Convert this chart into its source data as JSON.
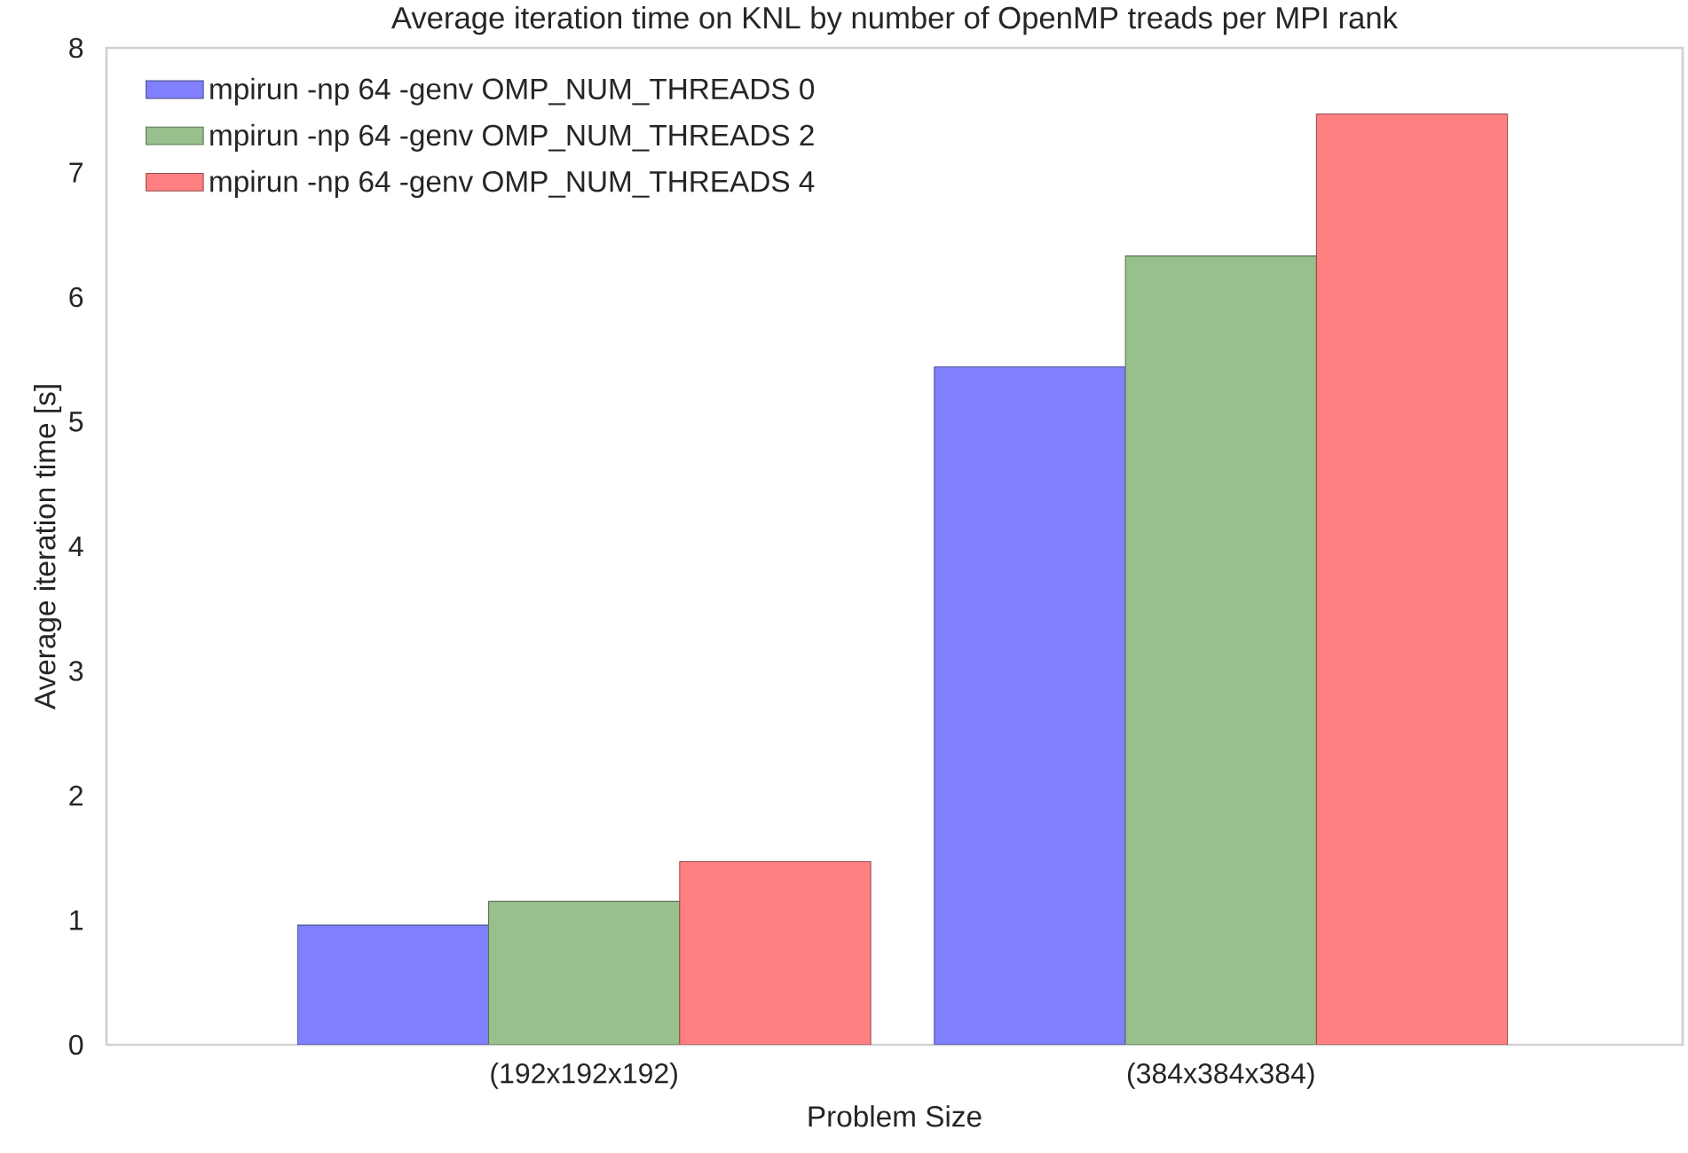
{
  "chart_data": {
    "type": "bar",
    "title": "Average iteration time on KNL by number of OpenMP treads per MPI rank",
    "xlabel": "Problem Size",
    "ylabel": "Average iteration time [s]",
    "categories": [
      "(192x192x192)",
      "(384x384x384)"
    ],
    "series": [
      {
        "name": "mpirun -np 64 -genv OMP_NUM_THREADS 0",
        "color": "#8080ff",
        "values": [
          0.96,
          5.44
        ]
      },
      {
        "name": "mpirun -np 64 -genv OMP_NUM_THREADS 2",
        "color": "#98c08c",
        "values": [
          1.15,
          6.33
        ]
      },
      {
        "name": "mpirun -np 64 -genv OMP_NUM_THREADS 4",
        "color": "#ff8080",
        "values": [
          1.47,
          7.47
        ]
      }
    ],
    "ylim": [
      0,
      8
    ],
    "yticks": [
      0,
      1,
      2,
      3,
      4,
      5,
      6,
      7,
      8
    ],
    "legend": "top left"
  }
}
